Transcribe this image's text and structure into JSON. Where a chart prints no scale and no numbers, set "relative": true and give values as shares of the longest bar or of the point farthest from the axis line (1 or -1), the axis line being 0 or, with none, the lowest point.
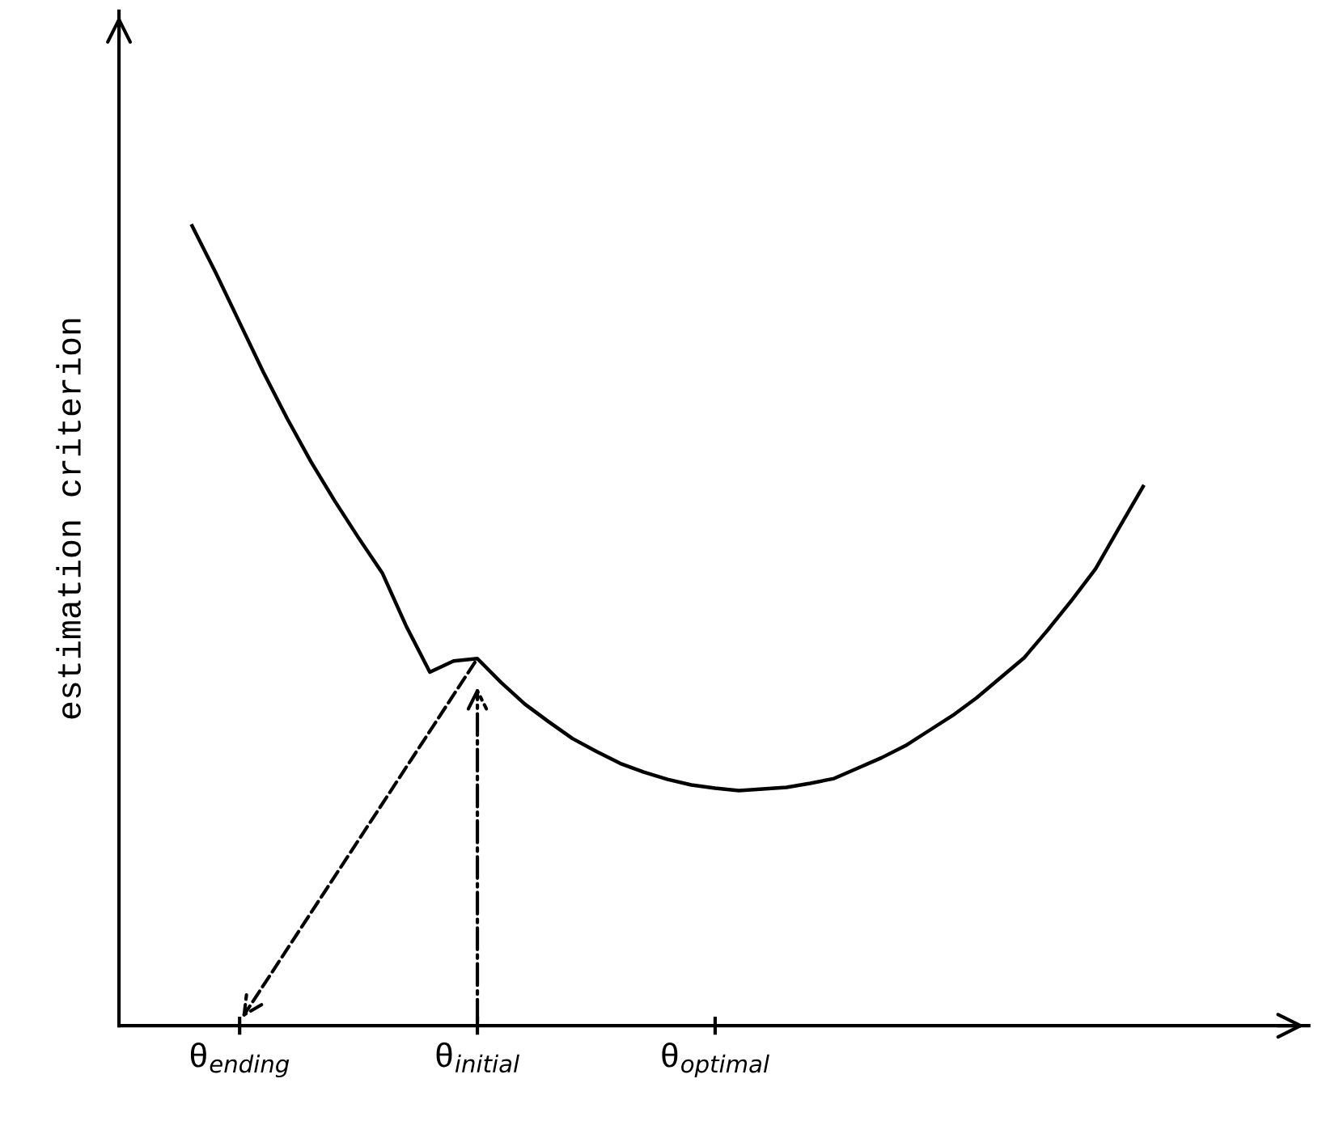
{
  "chart_data": {
    "type": "line",
    "relative": true,
    "ylabel": "estimation criterion",
    "categories": [
      null,
      null,
      "θ$_{ending}$",
      null,
      null,
      null,
      null,
      null,
      null,
      null,
      null,
      null,
      "θ$_{initial}$",
      null,
      null,
      null,
      null,
      null,
      null,
      null,
      null,
      null,
      "θ$_{optimal}$",
      null,
      null,
      null,
      null,
      null,
      null,
      null,
      null,
      null,
      null,
      null,
      null,
      null,
      null,
      null,
      null,
      null,
      null
    ],
    "tick_labels": "x",
    "grid": false,
    "legend": false,
    "marker": "none",
    "line_style": "solid",
    "series": [
      {
        "color": "#000000",
        "values": [
          1.0,
          0.941,
          0.879,
          0.817,
          0.759,
          0.705,
          0.656,
          0.61,
          0.566,
          0.5,
          0.442,
          0.456,
          0.459,
          0.429,
          0.402,
          0.38,
          0.359,
          0.343,
          0.328,
          0.317,
          0.308,
          0.301,
          0.297,
          0.294,
          0.296,
          0.298,
          0.303,
          0.309,
          0.322,
          0.335,
          0.35,
          0.369,
          0.388,
          0.41,
          0.435,
          0.46,
          0.495,
          0.532,
          0.571,
          0.623,
          0.674
        ]
      }
    ]
  }
}
